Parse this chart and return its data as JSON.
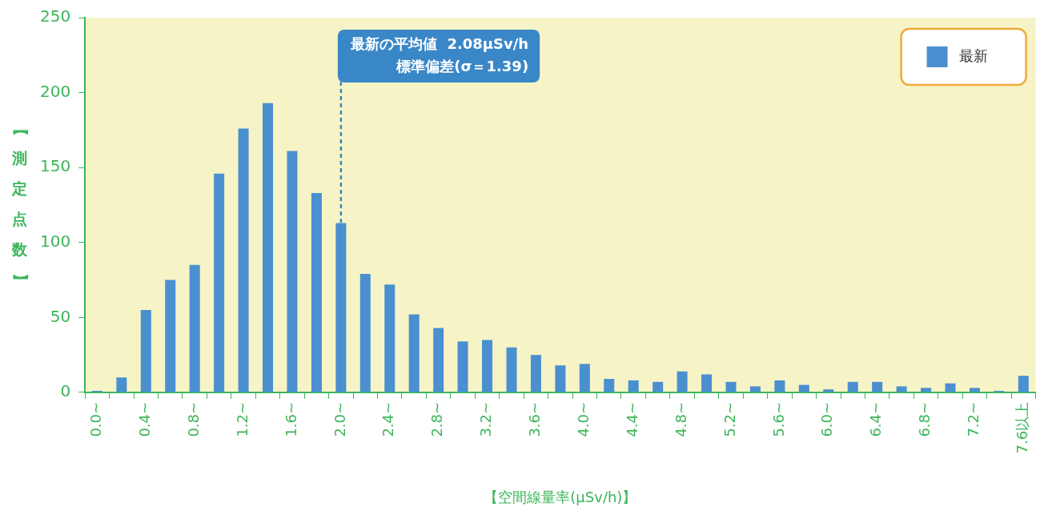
{
  "chart_data": {
    "type": "bar",
    "xlabel": "【空間線量率(μSv/h)】",
    "ylabel": "【測定点数】",
    "categories": [
      "0.0~",
      null,
      "0.4~",
      null,
      "0.8~",
      null,
      "1.2~",
      null,
      "1.6~",
      null,
      "2.0~",
      null,
      "2.4~",
      null,
      "2.8~",
      null,
      "3.2~",
      null,
      "3.6~",
      null,
      "4.0~",
      null,
      "4.4~",
      null,
      "4.8~",
      null,
      "5.2~",
      null,
      "5.6~",
      null,
      "6.0~",
      null,
      "6.4~",
      null,
      "6.8~",
      null,
      "7.2~",
      null,
      "7.6以上"
    ],
    "series": [
      {
        "name": "最新",
        "color": "#4a8fd0",
        "values": [
          1,
          10,
          55,
          75,
          85,
          146,
          176,
          193,
          161,
          133,
          113,
          79,
          72,
          52,
          43,
          34,
          35,
          30,
          25,
          18,
          19,
          9,
          8,
          7,
          14,
          12,
          7,
          4,
          8,
          5,
          2,
          7,
          7,
          4,
          3,
          6,
          3,
          1,
          11
        ]
      }
    ],
    "ylim": [
      0,
      250
    ],
    "yticks": [
      0,
      50,
      100,
      150,
      200,
      250
    ],
    "grid": false,
    "legend": "top right",
    "ref_lines": [
      {
        "axis": "x",
        "value": "2.0~",
        "label": "最新の平均値  2.08μSv/h\n標準偏差(σ＝1.39)",
        "color": "#3a87c8",
        "line_style": "dashed"
      }
    ]
  }
}
